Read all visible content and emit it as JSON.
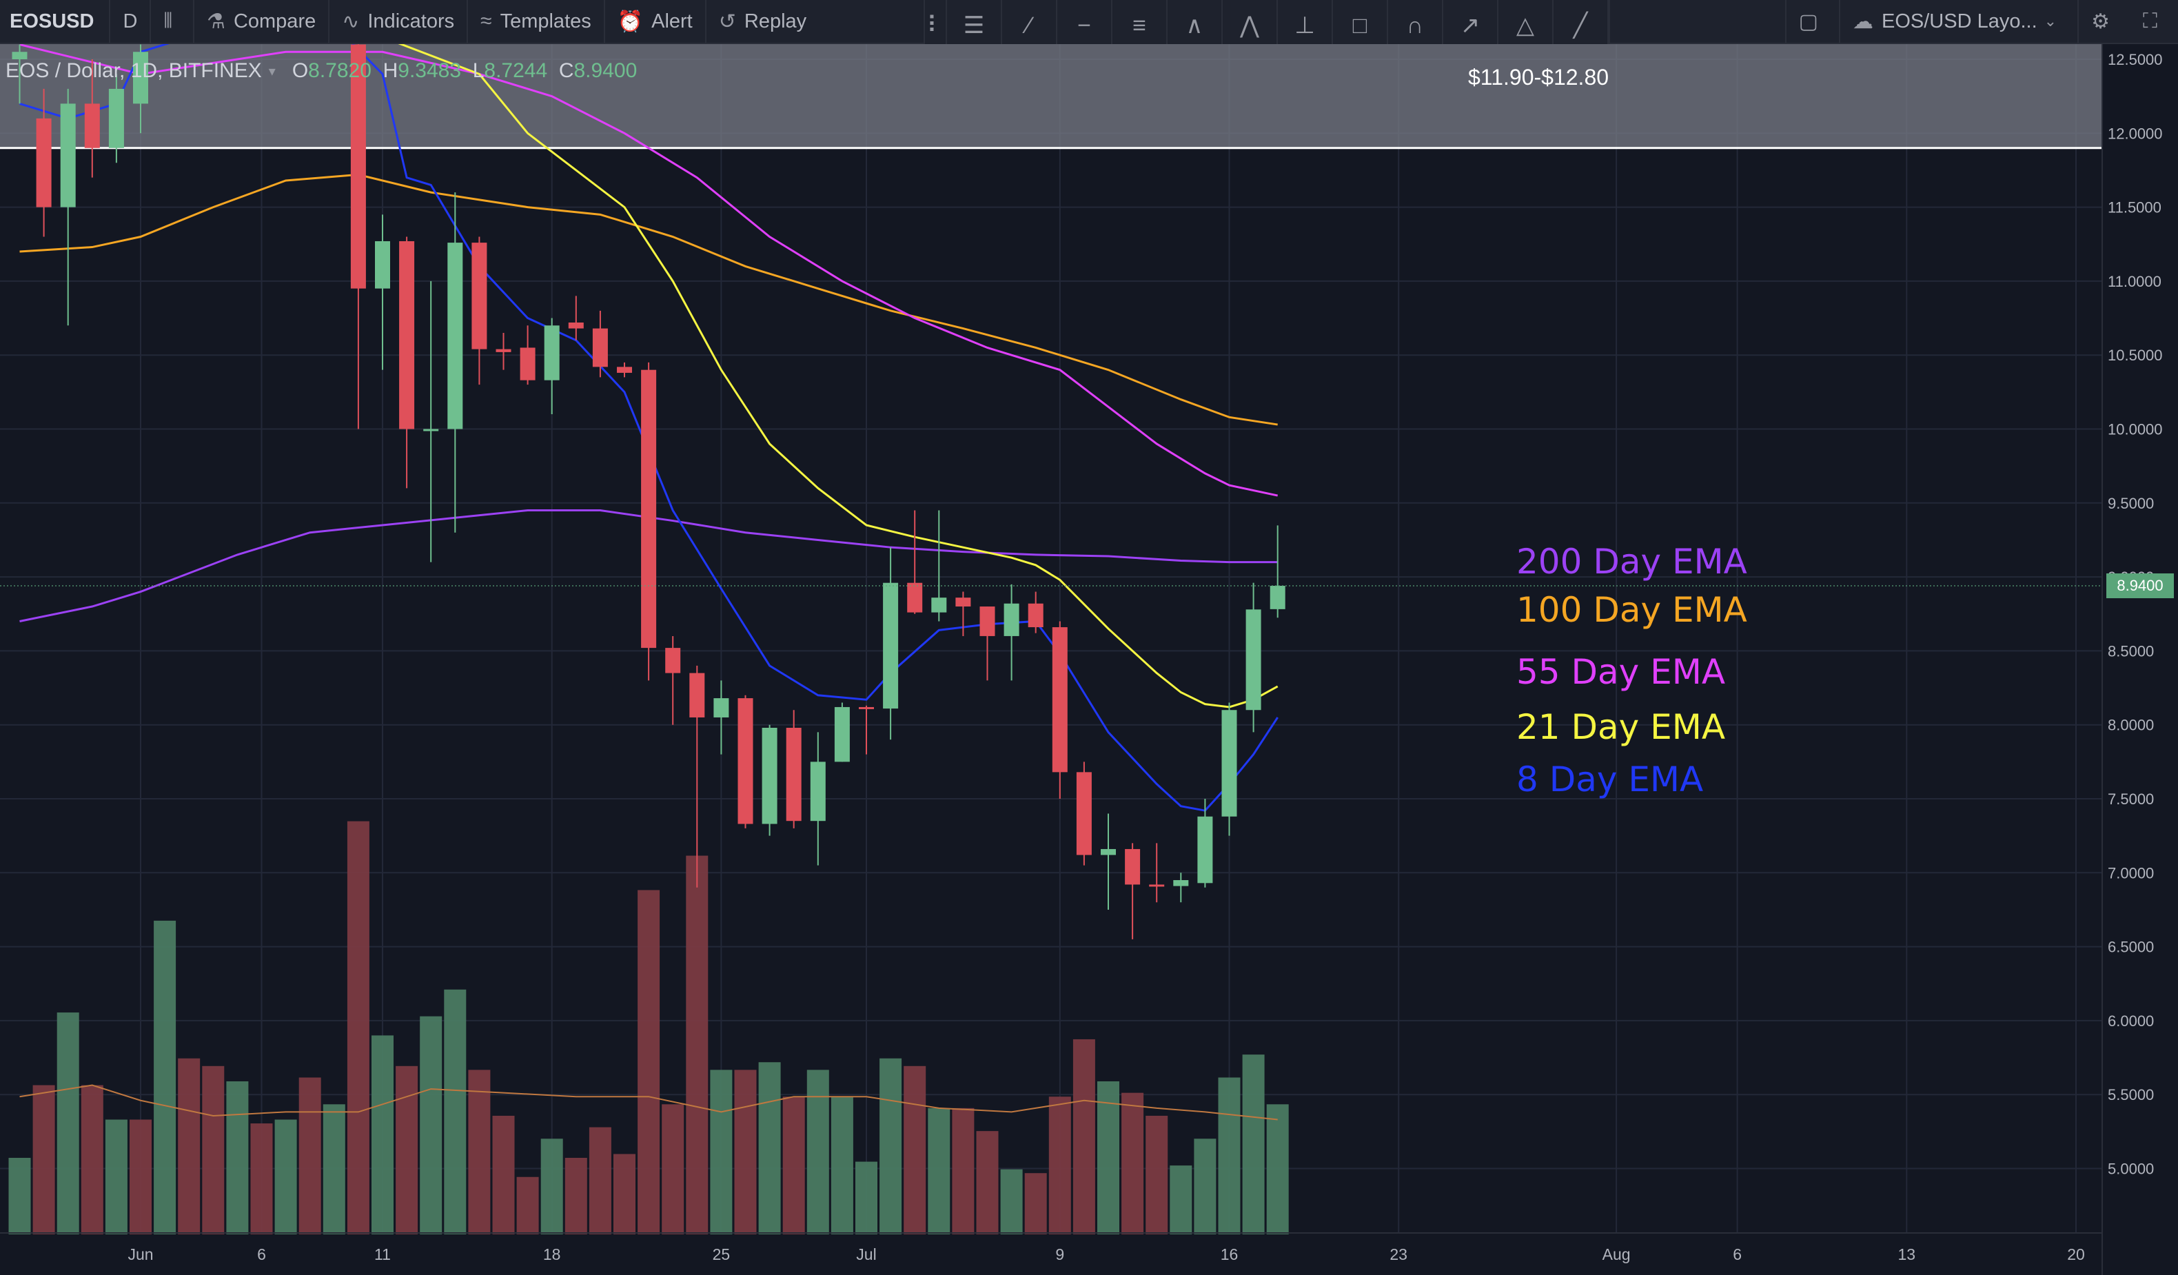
{
  "toolbar": {
    "symbol": "EOSUSD",
    "interval": "D",
    "compare": "Compare",
    "indicators": "Indicators",
    "templates": "Templates",
    "alert": "Alert",
    "replay": "Replay",
    "layout": "EOS/USD Layo..."
  },
  "legend": {
    "title": "EOS / Dollar, 1D, BITFINEX",
    "o_label": "O",
    "o": "8.7820",
    "h_label": "H",
    "h": "9.3483",
    "l_label": "L",
    "l": "8.7244",
    "c_label": "C",
    "c": "8.9400"
  },
  "zone_label": "$11.90-$12.80",
  "ema_labels": [
    {
      "text": "200 Day EMA",
      "color": "#9c42f5"
    },
    {
      "text": "100 Day EMA",
      "color": "#f5a623"
    },
    {
      "text": "55 Day EMA",
      "color": "#e040fb"
    },
    {
      "text": "21 Day EMA",
      "color": "#f5f542"
    },
    {
      "text": "8 Day EMA",
      "color": "#2038f5"
    }
  ],
  "colors": {
    "background": "#131722",
    "up": "#6fbf8f",
    "down": "#e0505a",
    "grid": "#232838",
    "zone": "#787b86"
  },
  "chart_data": {
    "type": "candlestick",
    "title": "EOS / Dollar, 1D, BITFINEX",
    "ylim": [
      4.6,
      12.55
    ],
    "y_ticks": [
      12.5,
      12.0,
      11.5,
      11.0,
      10.5,
      10.0,
      9.5,
      9.0,
      8.5,
      8.0,
      7.5,
      7.0,
      6.5,
      6.0,
      5.5,
      5.0
    ],
    "x_ticks": [
      {
        "label": "Jun",
        "day": 0
      },
      {
        "label": "6",
        "day": 5
      },
      {
        "label": "11",
        "day": 10
      },
      {
        "label": "18",
        "day": 17
      },
      {
        "label": "25",
        "day": 24
      },
      {
        "label": "Jul",
        "day": 30
      },
      {
        "label": "9",
        "day": 38
      },
      {
        "label": "16",
        "day": 45
      },
      {
        "label": "23",
        "day": 52
      },
      {
        "label": "Aug",
        "day": 61
      },
      {
        "label": "6",
        "day": 66
      },
      {
        "label": "13",
        "day": 73
      },
      {
        "label": "20",
        "day": 80
      }
    ],
    "last_price": 8.94,
    "horizontal_zone": {
      "low": 11.9,
      "high": 12.8,
      "label": "$11.90-$12.80"
    },
    "candles": [
      {
        "day": -5,
        "o": 12.5,
        "h": 12.6,
        "l": 12.2,
        "c": 12.55
      },
      {
        "day": -4,
        "o": 12.1,
        "h": 12.3,
        "l": 11.3,
        "c": 11.5
      },
      {
        "day": -3,
        "o": 11.5,
        "h": 12.3,
        "l": 10.7,
        "c": 12.2
      },
      {
        "day": -2,
        "o": 12.2,
        "h": 12.5,
        "l": 11.7,
        "c": 11.9
      },
      {
        "day": -1,
        "o": 11.9,
        "h": 12.4,
        "l": 11.8,
        "c": 12.3
      },
      {
        "day": 0,
        "o": 12.2,
        "h": 12.6,
        "l": 12.0,
        "c": 12.55
      },
      {
        "day": 9,
        "o": 12.6,
        "h": 12.7,
        "l": 10.0,
        "c": 10.95
      },
      {
        "day": 10,
        "o": 10.95,
        "h": 11.45,
        "l": 10.4,
        "c": 11.27
      },
      {
        "day": 11,
        "o": 11.27,
        "h": 11.3,
        "l": 9.6,
        "c": 10.0
      },
      {
        "day": 12,
        "o": 10.0,
        "h": 11.0,
        "l": 9.1,
        "c": 10.0
      },
      {
        "day": 13,
        "o": 10.0,
        "h": 11.6,
        "l": 9.3,
        "c": 11.26
      },
      {
        "day": 14,
        "o": 11.26,
        "h": 11.3,
        "l": 10.3,
        "c": 10.54
      },
      {
        "day": 15,
        "o": 10.54,
        "h": 10.65,
        "l": 10.4,
        "c": 10.52
      },
      {
        "day": 16,
        "o": 10.55,
        "h": 10.7,
        "l": 10.3,
        "c": 10.33
      },
      {
        "day": 17,
        "o": 10.33,
        "h": 10.75,
        "l": 10.1,
        "c": 10.7
      },
      {
        "day": 18,
        "o": 10.72,
        "h": 10.9,
        "l": 10.6,
        "c": 10.68
      },
      {
        "day": 19,
        "o": 10.68,
        "h": 10.8,
        "l": 10.35,
        "c": 10.42
      },
      {
        "day": 20,
        "o": 10.42,
        "h": 10.45,
        "l": 10.35,
        "c": 10.38
      },
      {
        "day": 21,
        "o": 10.4,
        "h": 10.45,
        "l": 8.3,
        "c": 8.52
      },
      {
        "day": 22,
        "o": 8.52,
        "h": 8.6,
        "l": 8.0,
        "c": 8.35
      },
      {
        "day": 23,
        "o": 8.35,
        "h": 8.4,
        "l": 6.9,
        "c": 8.05
      },
      {
        "day": 24,
        "o": 8.05,
        "h": 8.3,
        "l": 7.8,
        "c": 8.18
      },
      {
        "day": 25,
        "o": 8.18,
        "h": 8.2,
        "l": 7.3,
        "c": 7.33
      },
      {
        "day": 26,
        "o": 7.33,
        "h": 8.0,
        "l": 7.25,
        "c": 7.98
      },
      {
        "day": 27,
        "o": 7.98,
        "h": 8.1,
        "l": 7.3,
        "c": 7.35
      },
      {
        "day": 28,
        "o": 7.35,
        "h": 7.95,
        "l": 7.05,
        "c": 7.75
      },
      {
        "day": 29,
        "o": 7.75,
        "h": 8.15,
        "l": 7.75,
        "c": 8.12
      },
      {
        "day": 30,
        "o": 8.12,
        "h": 8.13,
        "l": 7.8,
        "c": 8.11
      },
      {
        "day": 31,
        "o": 8.11,
        "h": 9.2,
        "l": 7.9,
        "c": 8.96
      },
      {
        "day": 32,
        "o": 8.96,
        "h": 9.45,
        "l": 8.75,
        "c": 8.76
      },
      {
        "day": 33,
        "o": 8.76,
        "h": 9.45,
        "l": 8.7,
        "c": 8.86
      },
      {
        "day": 34,
        "o": 8.86,
        "h": 8.9,
        "l": 8.6,
        "c": 8.8
      },
      {
        "day": 35,
        "o": 8.8,
        "h": 8.8,
        "l": 8.3,
        "c": 8.6
      },
      {
        "day": 36,
        "o": 8.6,
        "h": 8.95,
        "l": 8.3,
        "c": 8.82
      },
      {
        "day": 37,
        "o": 8.82,
        "h": 8.9,
        "l": 8.62,
        "c": 8.66
      },
      {
        "day": 38,
        "o": 8.66,
        "h": 8.7,
        "l": 7.5,
        "c": 7.68
      },
      {
        "day": 39,
        "o": 7.68,
        "h": 7.75,
        "l": 7.05,
        "c": 7.12
      },
      {
        "day": 40,
        "o": 7.12,
        "h": 7.4,
        "l": 6.75,
        "c": 7.16
      },
      {
        "day": 41,
        "o": 7.16,
        "h": 7.2,
        "l": 6.55,
        "c": 6.92
      },
      {
        "day": 42,
        "o": 6.92,
        "h": 7.2,
        "l": 6.8,
        "c": 6.91
      },
      {
        "day": 43,
        "o": 6.91,
        "h": 7.0,
        "l": 6.8,
        "c": 6.95
      },
      {
        "day": 44,
        "o": 6.93,
        "h": 7.5,
        "l": 6.9,
        "c": 7.38
      },
      {
        "day": 45,
        "o": 7.38,
        "h": 8.15,
        "l": 7.25,
        "c": 8.1
      },
      {
        "day": 46,
        "o": 8.1,
        "h": 8.96,
        "l": 7.95,
        "c": 8.78
      },
      {
        "day": 47,
        "o": 8.782,
        "h": 9.3483,
        "l": 8.7244,
        "c": 8.94
      }
    ],
    "volume": {
      "ylim": [
        0,
        12
      ],
      "values": [
        {
          "day": -5,
          "v": 2.0,
          "up": true
        },
        {
          "day": -4,
          "v": 3.9,
          "up": false
        },
        {
          "day": -3,
          "v": 5.8,
          "up": true
        },
        {
          "day": -2,
          "v": 3.9,
          "up": false
        },
        {
          "day": -1,
          "v": 3.0,
          "up": true
        },
        {
          "day": 0,
          "v": 3.0,
          "up": false
        },
        {
          "day": 1,
          "v": 8.2,
          "up": true
        },
        {
          "day": 2,
          "v": 4.6,
          "up": false
        },
        {
          "day": 3,
          "v": 4.4,
          "up": false
        },
        {
          "day": 4,
          "v": 4.0,
          "up": true
        },
        {
          "day": 5,
          "v": 2.9,
          "up": false
        },
        {
          "day": 6,
          "v": 3.0,
          "up": true
        },
        {
          "day": 7,
          "v": 4.1,
          "up": false
        },
        {
          "day": 8,
          "v": 3.4,
          "up": true
        },
        {
          "day": 9,
          "v": 10.8,
          "up": false
        },
        {
          "day": 10,
          "v": 5.2,
          "up": true
        },
        {
          "day": 11,
          "v": 4.4,
          "up": false
        },
        {
          "day": 12,
          "v": 5.7,
          "up": true
        },
        {
          "day": 13,
          "v": 6.4,
          "up": true
        },
        {
          "day": 14,
          "v": 4.3,
          "up": false
        },
        {
          "day": 15,
          "v": 3.1,
          "up": false
        },
        {
          "day": 16,
          "v": 1.5,
          "up": false
        },
        {
          "day": 17,
          "v": 2.5,
          "up": true
        },
        {
          "day": 18,
          "v": 2.0,
          "up": false
        },
        {
          "day": 19,
          "v": 2.8,
          "up": false
        },
        {
          "day": 20,
          "v": 2.1,
          "up": false
        },
        {
          "day": 21,
          "v": 9.0,
          "up": false
        },
        {
          "day": 22,
          "v": 3.4,
          "up": false
        },
        {
          "day": 23,
          "v": 9.9,
          "up": false
        },
        {
          "day": 24,
          "v": 4.3,
          "up": true
        },
        {
          "day": 25,
          "v": 4.3,
          "up": false
        },
        {
          "day": 26,
          "v": 4.5,
          "up": true
        },
        {
          "day": 27,
          "v": 3.6,
          "up": false
        },
        {
          "day": 28,
          "v": 4.3,
          "up": true
        },
        {
          "day": 29,
          "v": 3.6,
          "up": true
        },
        {
          "day": 30,
          "v": 1.9,
          "up": true
        },
        {
          "day": 31,
          "v": 4.6,
          "up": true
        },
        {
          "day": 32,
          "v": 4.4,
          "up": false
        },
        {
          "day": 33,
          "v": 3.3,
          "up": true
        },
        {
          "day": 34,
          "v": 3.3,
          "up": false
        },
        {
          "day": 35,
          "v": 2.7,
          "up": false
        },
        {
          "day": 36,
          "v": 1.7,
          "up": true
        },
        {
          "day": 37,
          "v": 1.6,
          "up": false
        },
        {
          "day": 38,
          "v": 3.6,
          "up": false
        },
        {
          "day": 39,
          "v": 5.1,
          "up": false
        },
        {
          "day": 40,
          "v": 4.0,
          "up": true
        },
        {
          "day": 41,
          "v": 3.7,
          "up": false
        },
        {
          "day": 42,
          "v": 3.1,
          "up": false
        },
        {
          "day": 43,
          "v": 1.8,
          "up": true
        },
        {
          "day": 44,
          "v": 2.5,
          "up": true
        },
        {
          "day": 45,
          "v": 4.1,
          "up": true
        },
        {
          "day": 46,
          "v": 4.7,
          "up": true
        },
        {
          "day": 47,
          "v": 3.4,
          "up": true
        }
      ],
      "ma": [
        [
          -5,
          3.6
        ],
        [
          -2,
          3.9
        ],
        [
          0,
          3.5
        ],
        [
          3,
          3.1
        ],
        [
          6,
          3.2
        ],
        [
          9,
          3.2
        ],
        [
          12,
          3.8
        ],
        [
          15,
          3.7
        ],
        [
          18,
          3.6
        ],
        [
          21,
          3.6
        ],
        [
          24,
          3.2
        ],
        [
          27,
          3.6
        ],
        [
          30,
          3.6
        ],
        [
          33,
          3.3
        ],
        [
          36,
          3.2
        ],
        [
          39,
          3.5
        ],
        [
          42,
          3.3
        ],
        [
          44,
          3.2
        ],
        [
          47,
          3.0
        ]
      ]
    },
    "series": [
      {
        "name": "200 Day EMA",
        "color": "#9c42f5",
        "points": [
          [
            -5,
            8.7
          ],
          [
            -2,
            8.8
          ],
          [
            0,
            8.9
          ],
          [
            4,
            9.15
          ],
          [
            7,
            9.3
          ],
          [
            10,
            9.35
          ],
          [
            13,
            9.4
          ],
          [
            16,
            9.45
          ],
          [
            19,
            9.45
          ],
          [
            22,
            9.38
          ],
          [
            25,
            9.3
          ],
          [
            28,
            9.25
          ],
          [
            31,
            9.2
          ],
          [
            34,
            9.17
          ],
          [
            37,
            9.15
          ],
          [
            40,
            9.14
          ],
          [
            43,
            9.11
          ],
          [
            45,
            9.1
          ],
          [
            47,
            9.1
          ]
        ]
      },
      {
        "name": "100 Day EMA",
        "color": "#f5a623",
        "points": [
          [
            -5,
            11.2
          ],
          [
            -2,
            11.23
          ],
          [
            0,
            11.3
          ],
          [
            3,
            11.5
          ],
          [
            6,
            11.68
          ],
          [
            9,
            11.72
          ],
          [
            12,
            11.6
          ],
          [
            16,
            11.5
          ],
          [
            19,
            11.45
          ],
          [
            22,
            11.3
          ],
          [
            25,
            11.1
          ],
          [
            28,
            10.95
          ],
          [
            31,
            10.8
          ],
          [
            34,
            10.68
          ],
          [
            37,
            10.55
          ],
          [
            40,
            10.4
          ],
          [
            43,
            10.2
          ],
          [
            45,
            10.08
          ],
          [
            47,
            10.03
          ]
        ]
      },
      {
        "name": "55 Day EMA",
        "color": "#e040fb",
        "points": [
          [
            -5,
            12.6
          ],
          [
            0,
            12.4
          ],
          [
            6,
            12.55
          ],
          [
            10,
            12.55
          ],
          [
            14,
            12.4
          ],
          [
            17,
            12.25
          ],
          [
            20,
            12.0
          ],
          [
            23,
            11.7
          ],
          [
            26,
            11.3
          ],
          [
            29,
            11.0
          ],
          [
            32,
            10.75
          ],
          [
            35,
            10.55
          ],
          [
            38,
            10.4
          ],
          [
            40,
            10.15
          ],
          [
            42,
            9.9
          ],
          [
            44,
            9.7
          ],
          [
            45,
            9.62
          ],
          [
            47,
            9.55
          ]
        ]
      },
      {
        "name": "21 Day EMA",
        "color": "#f5f542",
        "points": [
          [
            10,
            12.65
          ],
          [
            14,
            12.4
          ],
          [
            16,
            12.0
          ],
          [
            18,
            11.75
          ],
          [
            20,
            11.5
          ],
          [
            22,
            11.0
          ],
          [
            24,
            10.4
          ],
          [
            26,
            9.9
          ],
          [
            28,
            9.6
          ],
          [
            30,
            9.35
          ],
          [
            32,
            9.27
          ],
          [
            34,
            9.2
          ],
          [
            36,
            9.13
          ],
          [
            37,
            9.08
          ],
          [
            38,
            8.98
          ],
          [
            40,
            8.65
          ],
          [
            42,
            8.35
          ],
          [
            43,
            8.22
          ],
          [
            44,
            8.14
          ],
          [
            45,
            8.12
          ],
          [
            46,
            8.17
          ],
          [
            47,
            8.26
          ]
        ]
      },
      {
        "name": "8 Day EMA",
        "color": "#2038f5",
        "points": [
          [
            -5,
            12.2
          ],
          [
            -3,
            12.1
          ],
          [
            -1,
            12.2
          ],
          [
            0,
            12.55
          ],
          [
            7,
            12.9
          ],
          [
            10,
            12.4
          ],
          [
            11,
            11.7
          ],
          [
            12,
            11.65
          ],
          [
            14,
            11.1
          ],
          [
            16,
            10.75
          ],
          [
            18,
            10.6
          ],
          [
            20,
            10.25
          ],
          [
            21,
            9.85
          ],
          [
            22,
            9.45
          ],
          [
            24,
            8.92
          ],
          [
            26,
            8.4
          ],
          [
            28,
            8.2
          ],
          [
            30,
            8.17
          ],
          [
            31,
            8.35
          ],
          [
            33,
            8.64
          ],
          [
            35,
            8.68
          ],
          [
            37,
            8.7
          ],
          [
            38,
            8.48
          ],
          [
            40,
            7.95
          ],
          [
            42,
            7.6
          ],
          [
            43,
            7.45
          ],
          [
            44,
            7.42
          ],
          [
            45,
            7.6
          ],
          [
            46,
            7.8
          ],
          [
            47,
            8.05
          ]
        ]
      }
    ]
  }
}
